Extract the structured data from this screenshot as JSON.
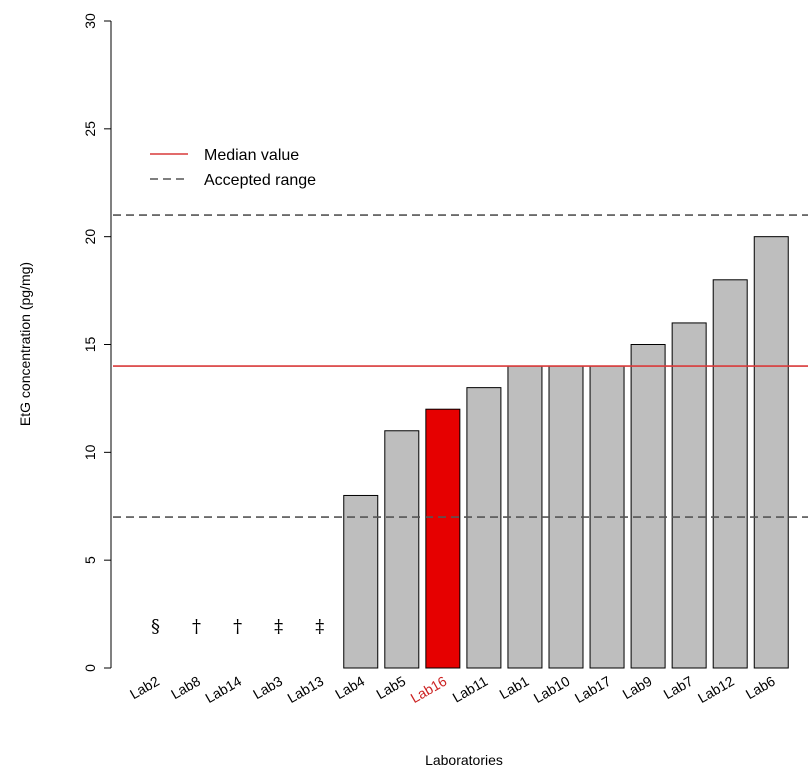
{
  "chart_data": {
    "type": "bar",
    "xlabel": "Laboratories",
    "ylabel": "EtG concentration (pg/mg)",
    "ylim": [
      0,
      30
    ],
    "yticks": [
      0,
      5,
      10,
      15,
      20,
      25,
      30
    ],
    "categories": [
      "Lab2",
      "Lab8",
      "Lab14",
      "Lab3",
      "Lab13",
      "Lab4",
      "Lab5",
      "Lab16",
      "Lab11",
      "Lab1",
      "Lab10",
      "Lab17",
      "Lab9",
      "Lab7",
      "Lab12",
      "Lab6"
    ],
    "values": [
      0,
      0,
      0,
      0,
      0,
      8,
      11,
      12,
      13,
      14,
      14,
      14,
      15,
      16,
      18,
      20
    ],
    "annotations": [
      "§",
      "†",
      "†",
      "‡",
      "‡",
      "",
      "",
      "",
      "",
      "",
      "",
      "",
      "",
      "",
      "",
      ""
    ],
    "highlight_category": "Lab16",
    "colors": {
      "bar": "#bebebe",
      "highlight_bar": "#e60000",
      "highlight_label": "#cc2222",
      "median_line": "#d93a3a",
      "range_line": "#555555"
    },
    "median": 14,
    "accepted_range": [
      7,
      21
    ],
    "legend": [
      {
        "label": "Median value",
        "style": "solid"
      },
      {
        "label": "Accepted range",
        "style": "dashed"
      }
    ],
    "legend_position": "top-left"
  }
}
